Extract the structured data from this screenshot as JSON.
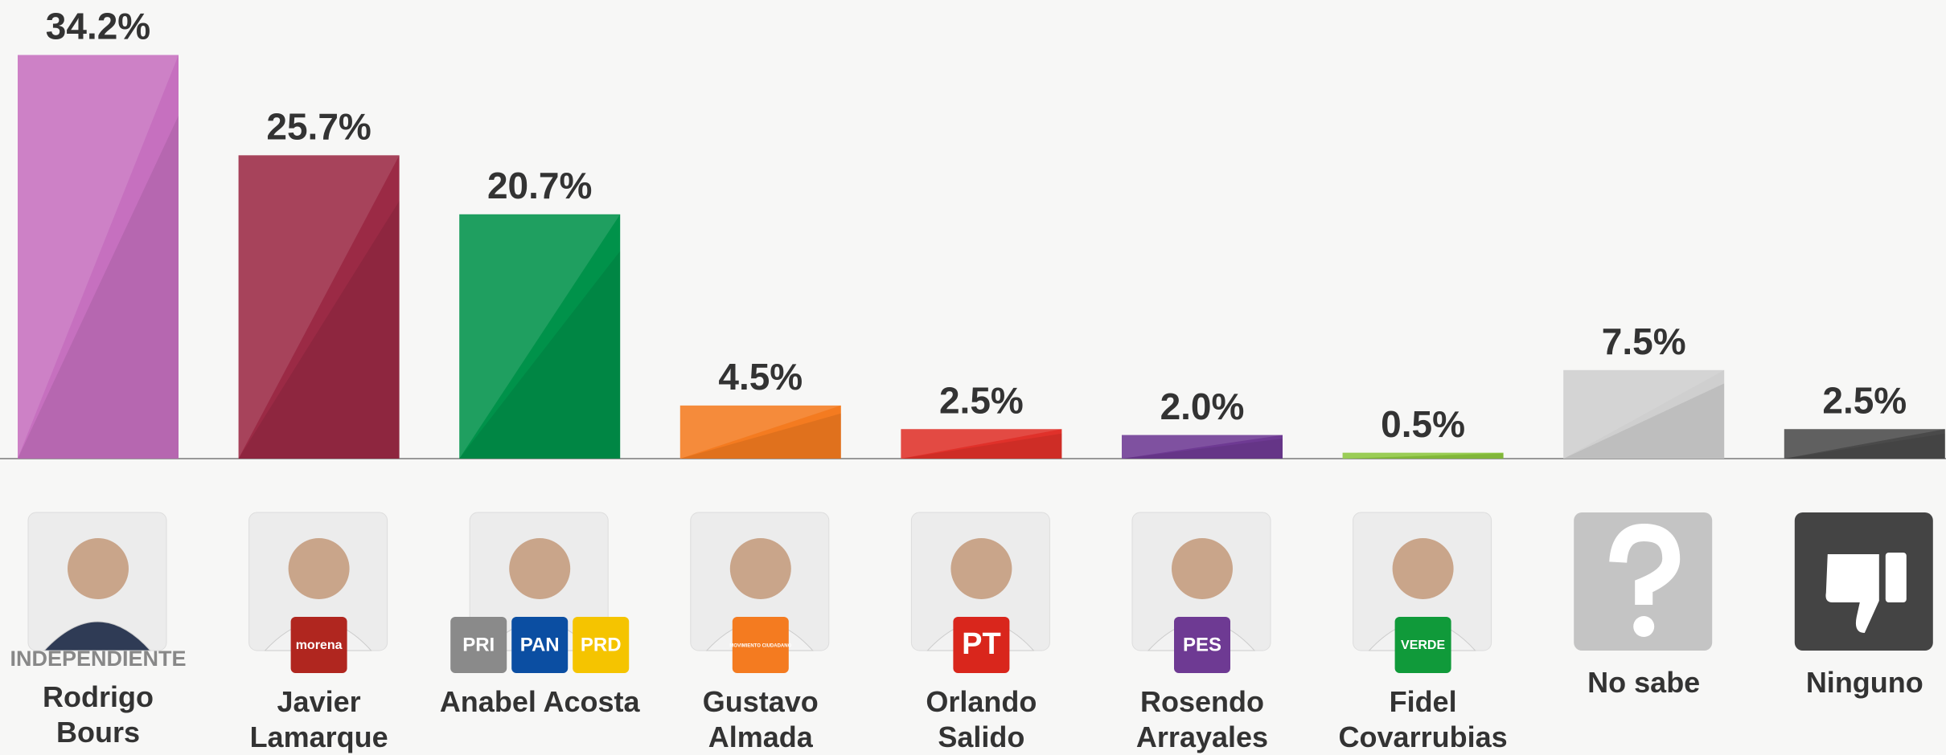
{
  "chart_data": {
    "type": "bar",
    "categories": [
      "Rodrigo Bours",
      "Javier Lamarque",
      "Anabel Acosta",
      "Gustavo Almada",
      "Orlando Salido",
      "Rosendo Arrayales",
      "Fidel Covarrubias",
      "No sabe",
      "Ninguno"
    ],
    "values": [
      34.2,
      25.7,
      20.7,
      4.5,
      2.5,
      2.0,
      0.5,
      7.5,
      2.5
    ],
    "value_labels": [
      "34.2%",
      "25.7%",
      "20.7%",
      "4.5%",
      "2.5%",
      "2.0%",
      "0.5%",
      "7.5%",
      "2.5%"
    ],
    "colors": [
      "#c670bf",
      "#9b2a45",
      "#00924a",
      "#f47b20",
      "#e0312a",
      "#6e3a93",
      "#8cc63f",
      "#cfcfcf",
      "#4a4a4a"
    ],
    "ylim": [
      0,
      36
    ],
    "tags": [
      "INDEPENDIENTE",
      null,
      null,
      null,
      null,
      null,
      null,
      null,
      null
    ],
    "parties": [
      [],
      [
        {
          "label": "morena",
          "color": "#b0261f"
        }
      ],
      [
        {
          "label": "PRI",
          "color": "#8a8a8a"
        },
        {
          "label": "PAN",
          "color": "#0b4ea2"
        },
        {
          "label": "PRD",
          "color": "#f5c400"
        }
      ],
      [
        {
          "label": "MOVIMIENTO CIUDADANO",
          "color": "#f47b20"
        }
      ],
      [
        {
          "label": "PT",
          "color": "#d9261c"
        }
      ],
      [
        {
          "label": "PES",
          "color": "#6e3a93"
        }
      ],
      [
        {
          "label": "VERDE",
          "color": "#109a3a"
        }
      ],
      [],
      []
    ]
  }
}
